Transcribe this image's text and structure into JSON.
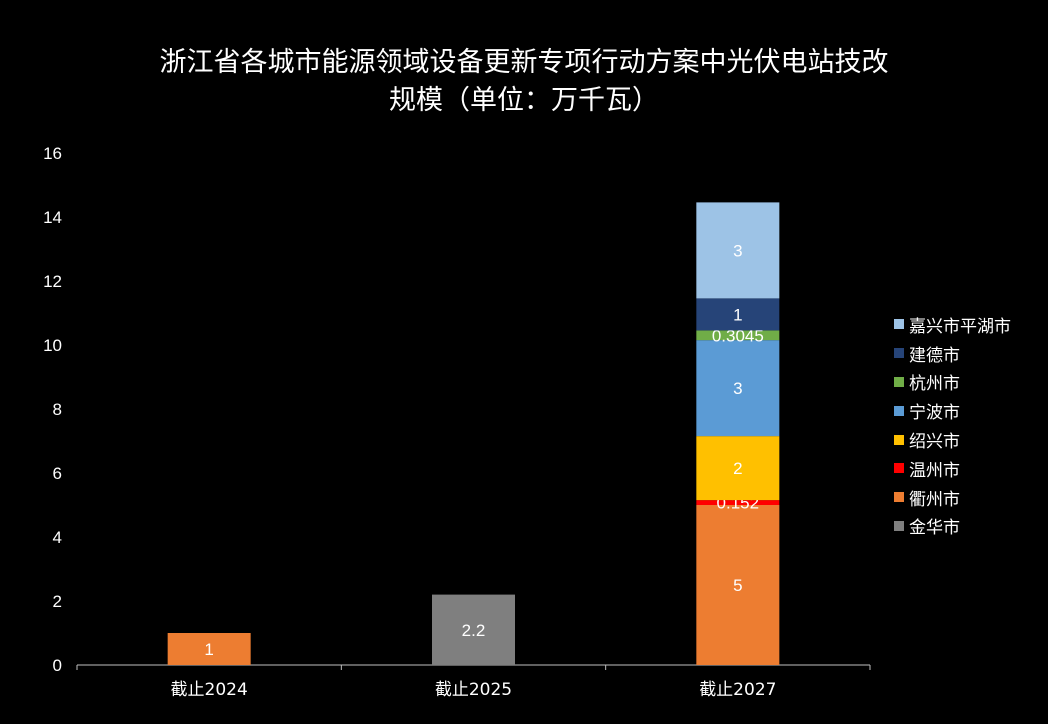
{
  "chart_data": {
    "type": "bar",
    "stacked": true,
    "title_lines": [
      "浙江省各城市能源领域设备更新专项行动方案中光伏电站技改",
      "规模（单位：万千瓦）"
    ],
    "categories": [
      "截止2024",
      "截止2025",
      "截止2027"
    ],
    "ylim": [
      0,
      16
    ],
    "yticks": [
      0,
      2,
      4,
      6,
      8,
      10,
      12,
      14,
      16
    ],
    "grid": false,
    "legend_position": "right",
    "series": [
      {
        "name": "金华市",
        "color": "#7F7F7F",
        "values": [
          0,
          2.2,
          0
        ],
        "labels": [
          "",
          "2.2",
          ""
        ]
      },
      {
        "name": "衢州市",
        "color": "#ED7D31",
        "values": [
          1,
          0,
          5
        ],
        "labels": [
          "1",
          "",
          "5"
        ]
      },
      {
        "name": "温州市",
        "color": "#FF0000",
        "values": [
          0,
          0,
          0.152
        ],
        "labels": [
          "",
          "",
          "0.152"
        ]
      },
      {
        "name": "绍兴市",
        "color": "#FFC000",
        "values": [
          0,
          0,
          2
        ],
        "labels": [
          "",
          "",
          "2"
        ]
      },
      {
        "name": "宁波市",
        "color": "#5B9BD5",
        "values": [
          0,
          0,
          3
        ],
        "labels": [
          "",
          "",
          "3"
        ]
      },
      {
        "name": "杭州市",
        "color": "#70AD47",
        "values": [
          0,
          0,
          0.3045
        ],
        "labels": [
          "",
          "",
          "0.3045"
        ]
      },
      {
        "name": "建德市",
        "color": "#264478",
        "values": [
          0,
          0,
          1
        ],
        "labels": [
          "",
          "",
          "1"
        ]
      },
      {
        "name": "嘉兴市平湖市",
        "color": "#9DC3E6",
        "values": [
          0,
          0,
          3
        ],
        "labels": [
          "",
          "",
          "3"
        ]
      }
    ]
  }
}
